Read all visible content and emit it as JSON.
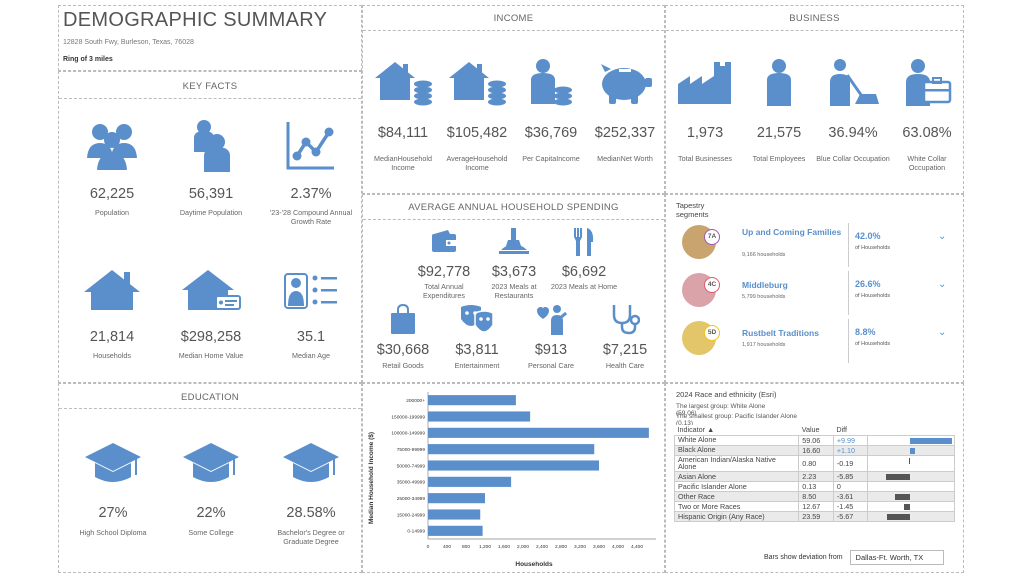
{
  "header": {
    "title": "DEMOGRAPHIC SUMMARY",
    "address": "12828 South Fwy, Burleson, Texas, 76028",
    "ring": "Ring of 3 miles"
  },
  "key_facts": {
    "title": "KEY FACTS",
    "items": [
      {
        "value": "62,225",
        "label": "Population",
        "icon": "people-group-icon"
      },
      {
        "value": "56,391",
        "label": "Daytime Population",
        "icon": "daytime-people-icon"
      },
      {
        "value": "2.37%",
        "label": "'23-'28 Compound Annual Growth Rate",
        "icon": "growth-chart-icon"
      },
      {
        "value": "21,814",
        "label": "Households",
        "icon": "house-icon"
      },
      {
        "value": "$298,258",
        "label": "Median Home Value",
        "icon": "house-tag-icon"
      },
      {
        "value": "35.1",
        "label": "Median Age",
        "icon": "person-list-icon"
      }
    ]
  },
  "income": {
    "title": "INCOME",
    "items": [
      {
        "value": "$84,111",
        "label": "MedianHousehold Income",
        "icon": "houses-coins-icon"
      },
      {
        "value": "$105,482",
        "label": "AverageHousehold Income",
        "icon": "houses-coins-icon"
      },
      {
        "value": "$36,769",
        "label": "Per CapitaIncome",
        "icon": "person-coins-icon"
      },
      {
        "value": "$252,337",
        "label": "MedianNet Worth",
        "icon": "piggy-bank-icon"
      }
    ]
  },
  "business": {
    "title": "BUSINESS",
    "items": [
      {
        "value": "1,973",
        "label": "Total Businesses",
        "icon": "factory-icon"
      },
      {
        "value": "21,575",
        "label": "Total Employees",
        "icon": "person-icon"
      },
      {
        "value": "36.94%",
        "label": "Blue Collar Occupation",
        "icon": "worker-icon"
      },
      {
        "value": "63.08%",
        "label": "White Collar Occupation",
        "icon": "briefcase-person-icon"
      }
    ]
  },
  "spending": {
    "title": "AVERAGE ANNUAL HOUSEHOLD SPENDING",
    "items": [
      {
        "value": "$92,778",
        "label": "Total Annual Expenditures",
        "icon": "wallet-icon"
      },
      {
        "value": "$3,673",
        "label": "2023 Meals at Restaurants",
        "icon": "restaurant-icon"
      },
      {
        "value": "$6,692",
        "label": "2023 Meals at Home",
        "icon": "fork-knife-icon"
      },
      {
        "value": "$30,668",
        "label": "Retail Goods",
        "icon": "shopping-bag-icon"
      },
      {
        "value": "$3,811",
        "label": "Entertainment",
        "icon": "theater-masks-icon"
      },
      {
        "value": "$913",
        "label": "Personal Care",
        "icon": "personal-care-icon"
      },
      {
        "value": "$7,215",
        "label": "Health Care",
        "icon": "stethoscope-icon"
      }
    ]
  },
  "tapestry": {
    "title": "Tapestry segments",
    "rows": [
      {
        "code": "7A",
        "name": "Up and Coming Families",
        "households": "9,166 households",
        "pct": "42.0%",
        "of": "of Households",
        "badge_color": "#9b59b6"
      },
      {
        "code": "4C",
        "name": "Middleburg",
        "households": "5,799 households",
        "pct": "26.6%",
        "of": "of Households",
        "badge_color": "#e05a6e"
      },
      {
        "code": "5D",
        "name": "Rustbelt Traditions",
        "households": "1,917 households",
        "pct": "8.8%",
        "of": "of Households",
        "badge_color": "#f0c419"
      }
    ]
  },
  "education": {
    "title": "EDUCATION",
    "items": [
      {
        "value": "27%",
        "label": "High School Diploma",
        "icon": "graduation-cap-icon"
      },
      {
        "value": "22%",
        "label": "Some College",
        "icon": "graduation-cap-icon"
      },
      {
        "value": "28.58%",
        "label": "Bachelor's Degree or Graduate Degree",
        "icon": "graduation-cap-icon"
      }
    ]
  },
  "chart_data": {
    "type": "bar",
    "orientation": "horizontal",
    "categories": [
      "200000+",
      "150000-199999",
      "100000-149999",
      "75000-99999",
      "50000-74999",
      "35000-49999",
      "25000-34999",
      "15000-24999",
      "0-14999"
    ],
    "values": [
      1850,
      2150,
      4650,
      3500,
      3600,
      1750,
      1200,
      1100,
      1150
    ],
    "xlabel": "Households",
    "ylabel": "Median Household Income ($)",
    "xlim": [
      0,
      4800
    ],
    "xticks": [
      "0",
      "400",
      "800",
      "1,200",
      "1,600",
      "2,000",
      "2,400",
      "2,800",
      "3,200",
      "3,600",
      "4,000",
      "4,400"
    ],
    "color": "#5a8fcb",
    "grid": false
  },
  "race": {
    "title": "2024 Race and ethnicity (Esri)",
    "largest": "The largest group: White Alone",
    "largest_value": "(59.06)",
    "smallest": "The smallest group: Pacific Islander Alone",
    "smallest_value": "(0.13)",
    "headers": [
      "Indicator ▲",
      "Value",
      "Diff"
    ],
    "rows": [
      {
        "indicator": "White Alone",
        "value": "59.06",
        "diff": "+9.99",
        "d": 9.99
      },
      {
        "indicator": "Black Alone",
        "value": "16.60",
        "diff": "+1.10",
        "d": 1.1
      },
      {
        "indicator": "American Indian/Alaska Native Alone",
        "value": "0.80",
        "diff": "-0.19",
        "d": -0.19
      },
      {
        "indicator": "Asian Alone",
        "value": "2.23",
        "diff": "-5.85",
        "d": -5.85
      },
      {
        "indicator": "Pacific Islander Alone",
        "value": "0.13",
        "diff": "0",
        "d": 0
      },
      {
        "indicator": "Other Race",
        "value": "8.50",
        "diff": "-3.61",
        "d": -3.61
      },
      {
        "indicator": "Two or More Races",
        "value": "12.67",
        "diff": "-1.45",
        "d": -1.45
      },
      {
        "indicator": "Hispanic Origin (Any Race)",
        "value": "23.59",
        "diff": "-5.67",
        "d": -5.67
      }
    ],
    "footer_label": "Bars show deviation from",
    "footer_value": "Dallas-Ft. Worth, TX"
  }
}
